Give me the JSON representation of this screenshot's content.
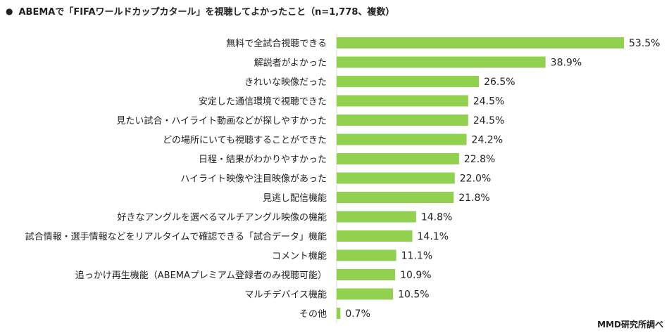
{
  "bullet": "●",
  "credit": "MMD研究所調べ",
  "chart_data": {
    "type": "bar",
    "orientation": "horizontal",
    "title": "ABEMAで「FIFAワールドカップカタール」を視聴してよかったこと（n=1,778、複数）",
    "value_suffix": "%",
    "bar_color": "#92d050",
    "xlim": [
      0,
      53.5
    ],
    "grid": false,
    "categories": [
      "無料で全試合視聴できる",
      "解説者がよかった",
      "きれいな映像だった",
      "安定した通信環境で視聴できた",
      "見たい試合・ハイライト動画などが探しやすかった",
      "どの場所にいても視聴することができた",
      "日程・結果がわかりやすかった",
      "ハイライト映像や注目映像があった",
      "見逃し配信機能",
      "好きなアングルを選べるマルチアングル映像の機能",
      "試合情報・選手情報などをリアルタイムで確認できる「試合データ」機能",
      "コメント機能",
      "追っかけ再生機能（ABEMAプレミアム登録者のみ視聴可能）",
      "マルチデバイス機能",
      "その他"
    ],
    "values": [
      53.5,
      38.9,
      26.5,
      24.5,
      24.5,
      24.2,
      22.8,
      22.0,
      21.8,
      14.8,
      14.1,
      11.1,
      10.9,
      10.5,
      0.7
    ],
    "value_labels": [
      "53.5%",
      "38.9%",
      "26.5%",
      "24.5%",
      "24.5%",
      "24.2%",
      "22.8%",
      "22.0%",
      "21.8%",
      "14.8%",
      "14.1%",
      "11.1%",
      "10.9%",
      "10.5%",
      "0.7%"
    ]
  }
}
